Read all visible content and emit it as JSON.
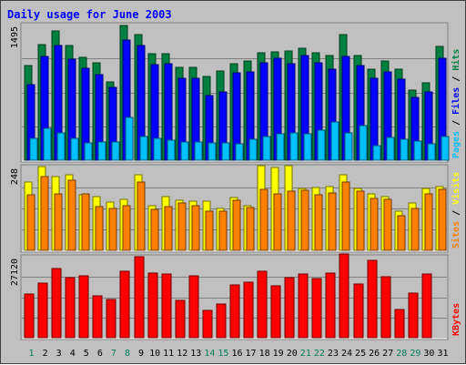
{
  "chart_data": {
    "type": "bar",
    "title": "Daily usage for June 2003",
    "categories": [
      "1",
      "2",
      "3",
      "4",
      "5",
      "6",
      "7",
      "8",
      "9",
      "10",
      "11",
      "12",
      "13",
      "14",
      "15",
      "16",
      "17",
      "18",
      "19",
      "20",
      "21",
      "22",
      "23",
      "24",
      "25",
      "26",
      "27",
      "28",
      "29",
      "30",
      "31"
    ],
    "weekend_days": [
      "1",
      "7",
      "8",
      "14",
      "15",
      "21",
      "22",
      "28",
      "29"
    ],
    "panels": [
      {
        "id": "hits",
        "ylim": [
          0,
          1495
        ],
        "max_label": "1495",
        "legend": [
          "Pages",
          "Files",
          "Hits"
        ],
        "series": [
          {
            "name": "Hits",
            "color": "#008040",
            "values": [
              1040,
              1270,
              1420,
              1260,
              1130,
              1070,
              860,
              1480,
              1380,
              1170,
              1170,
              1020,
              1020,
              920,
              980,
              1060,
              1090,
              1180,
              1190,
              1200,
              1230,
              1180,
              1150,
              1380,
              1150,
              1000,
              1090,
              1000,
              770,
              850,
              1250
            ]
          },
          {
            "name": "Files",
            "color": "#0000ff",
            "values": [
              830,
              1140,
              1260,
              1110,
              1010,
              940,
              800,
              1320,
              1260,
              1050,
              1060,
              900,
              900,
              710,
              750,
              960,
              970,
              1070,
              1120,
              1060,
              1150,
              1070,
              1000,
              1140,
              1040,
              900,
              970,
              890,
              690,
              750,
              1120
            ]
          },
          {
            "name": "Pages",
            "color": "#00c0ff",
            "values": [
              240,
              350,
              300,
              240,
              190,
              200,
              200,
              470,
              260,
              240,
              220,
              200,
              200,
              190,
              190,
              180,
              230,
              260,
              290,
              300,
              290,
              330,
              420,
              300,
              380,
              160,
              250,
              230,
              210,
              180,
              260
            ]
          }
        ]
      },
      {
        "id": "visits",
        "ylim": [
          0,
          248
        ],
        "max_label": "248",
        "legend": [
          "Sites",
          "Visits"
        ],
        "series": [
          {
            "name": "Visits",
            "color": "#ffff00",
            "values": [
              202,
              248,
              219,
              225,
              164,
              160,
              143,
              150,
              224,
              131,
              160,
              148,
              146,
              146,
              124,
              157,
              132,
              251,
              246,
              252,
              183,
              187,
              188,
              223,
              183,
              167,
              160,
              117,
              141,
              184,
              190
            ]
          },
          {
            "name": "Sites",
            "color": "#ff8000",
            "values": [
              165,
              217,
              167,
              207,
              167,
              129,
              124,
              133,
              203,
              120,
              129,
              140,
              133,
              115,
              115,
              149,
              127,
              180,
              168,
              174,
              177,
              165,
              170,
              203,
              176,
              153,
              152,
              103,
              123,
              168,
              180
            ]
          }
        ]
      },
      {
        "id": "kbytes",
        "ylim": [
          0,
          27120
        ],
        "max_label": "27120",
        "legend": [
          "KBytes"
        ],
        "series": [
          {
            "name": "KBytes",
            "color": "#ff0000",
            "values": [
              14500,
              18200,
              23300,
              20000,
              20800,
              14000,
              12800,
              22100,
              27000,
              21500,
              21300,
              12600,
              20800,
              9200,
              11300,
              17600,
              18700,
              22300,
              17500,
              20100,
              21300,
              19900,
              21500,
              28000,
              17900,
              26000,
              20500,
              9300,
              14800,
              21200,
              0
            ]
          }
        ]
      }
    ]
  }
}
